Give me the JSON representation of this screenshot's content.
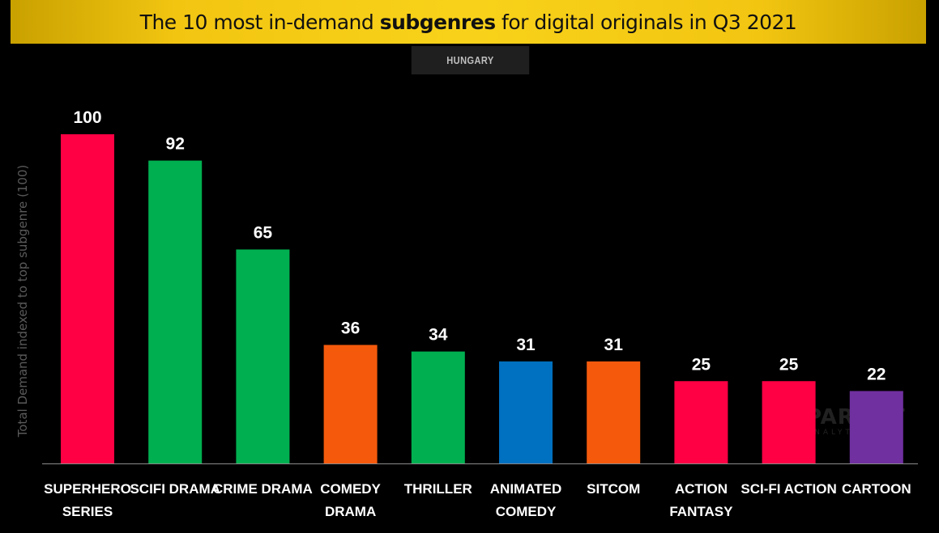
{
  "header": {
    "title_prefix": "The 10 most in-demand ",
    "title_bold": "subgenres",
    "title_suffix": " for digital originals in Q3 2021"
  },
  "region_tab": "HUNGARY",
  "watermark": {
    "main": "PARROT",
    "sub": "ANALYTICS"
  },
  "chart_data": {
    "type": "bar",
    "title": "The 10 most in-demand subgenres for digital originals in Q3 2021",
    "subtitle": "HUNGARY",
    "ylabel": "Total Demand indexed to top subgenre (100)",
    "xlabel": "",
    "ylim": [
      0,
      100
    ],
    "grid": false,
    "categories": [
      [
        "SUPERHERO",
        "SERIES"
      ],
      [
        "SCIFI DRAMA"
      ],
      [
        "CRIME DRAMA"
      ],
      [
        "COMEDY",
        "DRAMA"
      ],
      [
        "THRILLER"
      ],
      [
        "ANIMATED",
        "COMEDY"
      ],
      [
        "SITCOM"
      ],
      [
        "ACTION",
        "FANTASY"
      ],
      [
        "SCI-FI ACTION"
      ],
      [
        "CARTOON"
      ]
    ],
    "values": [
      100,
      92,
      65,
      36,
      34,
      31,
      31,
      25,
      25,
      22
    ],
    "colors": [
      "#ff0044",
      "#00b050",
      "#00b050",
      "#f55a0c",
      "#00b050",
      "#0070c0",
      "#f55a0c",
      "#ff0044",
      "#ff0044",
      "#7030a0"
    ]
  }
}
